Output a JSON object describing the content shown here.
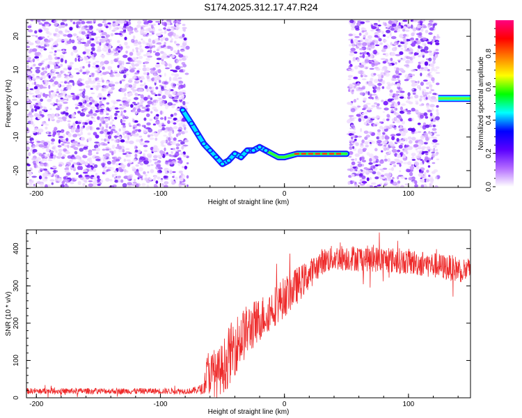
{
  "title": "S174.2025.312.17.47.R24",
  "chart_data": [
    {
      "type": "heatmap",
      "xlabel": "Height of straight line (km)",
      "ylabel": "Frequency (Hz)",
      "xlim": [
        -208,
        150
      ],
      "ylim": [
        -25,
        25
      ],
      "x_ticks": [
        -200,
        -100,
        0,
        100
      ],
      "y_ticks": [
        -20,
        -10,
        0,
        10,
        20
      ],
      "colorbar": {
        "label": "Normalized spectral amplitude",
        "range": [
          0.0,
          1.0
        ],
        "ticks": [
          "0.0",
          "0.2",
          "0.4",
          "0.6",
          "0.8"
        ],
        "colors": [
          "#ffffff",
          "#b36bff",
          "#5a00ff",
          "#0000ff",
          "#00ffff",
          "#00ff00",
          "#ffff00",
          "#ff8000",
          "#ff0000",
          "#ff0080"
        ]
      },
      "noise_regions_km": [
        [
          -208,
          -78
        ],
        [
          52,
          124
        ]
      ],
      "signal_trace": {
        "points_km_hz": [
          [
            -82,
            -2
          ],
          [
            -75,
            -6
          ],
          [
            -70,
            -9
          ],
          [
            -65,
            -12
          ],
          [
            -60,
            -14
          ],
          [
            -55,
            -16
          ],
          [
            -50,
            -18
          ],
          [
            -45,
            -17
          ],
          [
            -40,
            -15
          ],
          [
            -35,
            -16
          ],
          [
            -30,
            -14
          ],
          [
            -25,
            -14
          ],
          [
            -20,
            -13
          ],
          [
            -15,
            -14
          ],
          [
            -10,
            -15
          ],
          [
            -5,
            -16
          ],
          [
            0,
            -16
          ],
          [
            10,
            -15
          ],
          [
            20,
            -15
          ],
          [
            30,
            -15
          ],
          [
            40,
            -15
          ],
          [
            50,
            -15
          ]
        ],
        "late_segment": {
          "x_range_km": [
            124,
            150
          ],
          "hz": 1.5
        }
      }
    },
    {
      "type": "line",
      "xlabel": "Height of straight line (km)",
      "ylabel": "SNR (10 * v/v)",
      "xlim": [
        -208,
        150
      ],
      "ylim": [
        0,
        450
      ],
      "x_ticks": [
        -200,
        -100,
        0,
        100
      ],
      "y_ticks": [
        0,
        100,
        200,
        300,
        400
      ],
      "color": "#ee2a2a",
      "envelope": {
        "x": [
          -208,
          -75,
          -65,
          -62,
          -55,
          -50,
          -45,
          -40,
          -30,
          -20,
          -10,
          0,
          10,
          20,
          30,
          40,
          60,
          80,
          100,
          120,
          140,
          150
        ],
        "y": [
          18,
          18,
          25,
          70,
          60,
          80,
          110,
          140,
          180,
          210,
          240,
          270,
          300,
          330,
          365,
          375,
          375,
          370,
          365,
          355,
          345,
          340
        ],
        "noise_amplitude": [
          8,
          8,
          15,
          60,
          60,
          70,
          80,
          80,
          70,
          60,
          55,
          55,
          50,
          40,
          35,
          35,
          35,
          35,
          35,
          35,
          35,
          35
        ]
      }
    }
  ]
}
